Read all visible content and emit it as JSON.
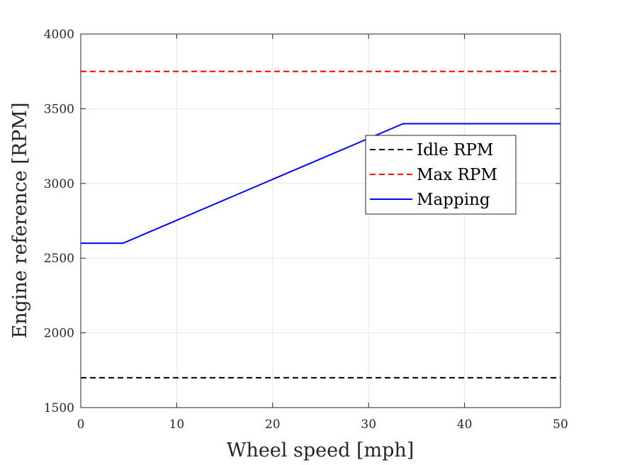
{
  "chart_data": {
    "type": "line",
    "title": "",
    "xlabel": "Wheel speed [mph]",
    "ylabel": "Engine reference [RPM]",
    "xlim": [
      0,
      50
    ],
    "ylim": [
      1500,
      4000
    ],
    "xticks": [
      0,
      10,
      20,
      30,
      40,
      50
    ],
    "yticks": [
      1500,
      2000,
      2500,
      3000,
      3500,
      4000
    ],
    "xtick_labels": [
      "0",
      "10",
      "20",
      "30",
      "40",
      "50"
    ],
    "ytick_labels": [
      "1500",
      "2000",
      "2500",
      "3000",
      "3500",
      "4000"
    ],
    "grid": true,
    "legend_position": "upper-right-inside",
    "series": [
      {
        "name": "Idle RPM",
        "color": "#000000",
        "style": "dashed",
        "x": [
          0,
          50
        ],
        "y": [
          1700,
          1700
        ]
      },
      {
        "name": "Max RPM",
        "color": "#ff0000",
        "style": "dashed",
        "x": [
          0,
          50
        ],
        "y": [
          3750,
          3750
        ]
      },
      {
        "name": "Mapping",
        "color": "#0000ff",
        "style": "solid",
        "x": [
          0,
          4.4,
          33.6,
          50
        ],
        "y": [
          2600,
          2600,
          3400,
          3400
        ]
      }
    ]
  }
}
